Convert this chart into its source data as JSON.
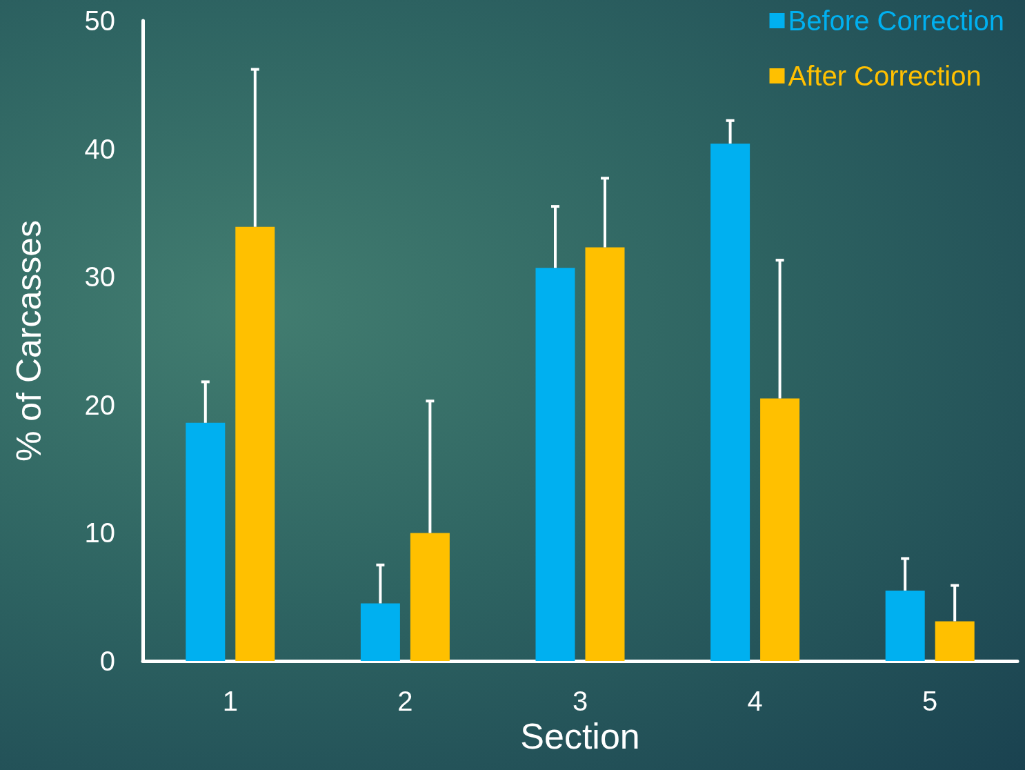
{
  "chart_data": {
    "type": "bar",
    "xlabel": "Section",
    "ylabel": "% of Carcasses",
    "categories": [
      "1",
      "2",
      "3",
      "4",
      "5"
    ],
    "series": [
      {
        "name": "Before Correction",
        "color": "#00b0f0",
        "values": [
          18.6,
          4.5,
          30.7,
          40.4,
          5.5
        ],
        "errors": [
          [
            18.6,
            21.8
          ],
          [
            4.5,
            7.5
          ],
          [
            30.7,
            35.5
          ],
          [
            40.4,
            42.2
          ],
          [
            5.5,
            8.0
          ]
        ]
      },
      {
        "name": "After Correction",
        "color": "#ffc000",
        "values": [
          33.9,
          10.0,
          32.3,
          20.5,
          3.1
        ],
        "errors": [
          [
            33.9,
            46.2
          ],
          [
            10.0,
            20.3
          ],
          [
            32.3,
            37.7
          ],
          [
            20.5,
            31.3
          ],
          [
            3.1,
            5.9
          ]
        ]
      }
    ],
    "ylim": [
      0,
      50
    ],
    "yticks": [
      0,
      10,
      20,
      30,
      40,
      50
    ],
    "grid": false,
    "legend": "top right"
  }
}
